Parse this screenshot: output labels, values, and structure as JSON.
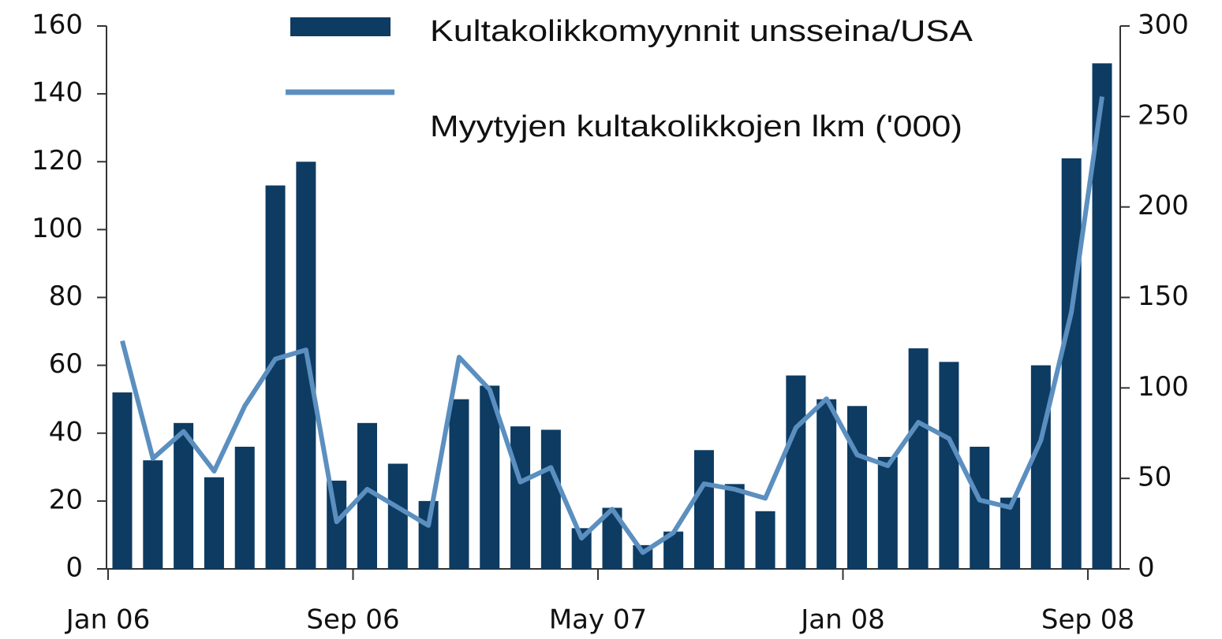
{
  "chart_data": {
    "type": "bar",
    "categories": [
      "Jan 06",
      null,
      null,
      null,
      null,
      null,
      null,
      null,
      "Sep 06",
      null,
      null,
      null,
      null,
      null,
      null,
      null,
      "May 07",
      null,
      null,
      null,
      null,
      null,
      null,
      null,
      "Jan 08",
      null,
      null,
      null,
      null,
      null,
      null,
      null,
      "Sep 08"
    ],
    "series": [
      {
        "name": "Kultakolikkomyynnit unsseina/USA",
        "color": "#0d3b62",
        "type": "bar",
        "values": [
          52,
          32,
          43,
          27,
          36,
          113,
          120,
          26,
          43,
          31,
          20,
          50,
          54,
          42,
          41,
          12,
          18,
          7,
          11,
          35,
          25,
          17,
          57,
          50,
          48,
          33,
          65,
          61,
          36,
          21,
          60,
          121,
          149
        ]
      },
      {
        "name": "Myytyjen kultakolikkojen lkm ('000)",
        "color": "#5b8fbf",
        "type": "line",
        "axis": "y2",
        "values": [
          126,
          61,
          76,
          54,
          90,
          116,
          121,
          26,
          44,
          34,
          24,
          117,
          99,
          48,
          56,
          17,
          33,
          9,
          20,
          47,
          44,
          39,
          78,
          94,
          63,
          57,
          81,
          72,
          38,
          34,
          71,
          142,
          261
        ]
      }
    ],
    "ylim": [
      0,
      160
    ],
    "yticks": [
      0,
      20,
      40,
      60,
      80,
      100,
      120,
      140,
      160
    ],
    "y2lim": [
      0,
      300
    ],
    "y2ticks": [
      0,
      50,
      100,
      150,
      200,
      250,
      300
    ]
  }
}
